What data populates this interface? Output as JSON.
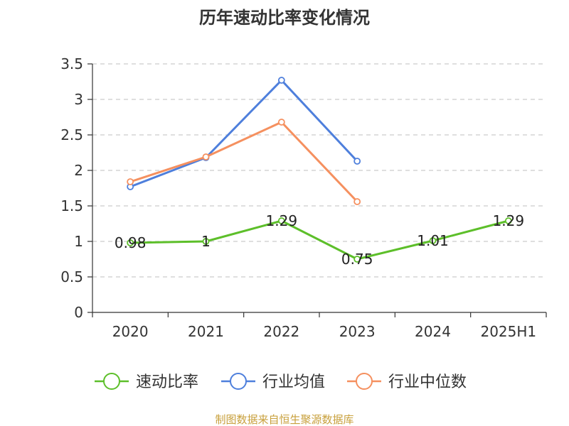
{
  "chart_data": {
    "type": "line",
    "title": "历年速动比率变化情况",
    "categories": [
      "2020",
      "2021",
      "2022",
      "2023",
      "2024",
      "2025H1"
    ],
    "ylim": [
      0,
      3.5
    ],
    "yticks": [
      "0",
      "0.5",
      "1",
      "1.5",
      "2",
      "2.5",
      "3",
      "3.5"
    ],
    "grid": true,
    "legend_position": "bottom",
    "series": [
      {
        "name": "速动比率",
        "color": "#5dbf2a",
        "values": [
          0.98,
          1.0,
          1.29,
          0.75,
          1.01,
          1.29
        ],
        "labels": [
          "0.98",
          "1",
          "1.29",
          "0.75",
          "1.01",
          "1.29"
        ]
      },
      {
        "name": "行业均值",
        "color": "#4e7fdc",
        "values": [
          1.77,
          2.18,
          3.27,
          2.13,
          null,
          null
        ]
      },
      {
        "name": "行业中位数",
        "color": "#f5905f",
        "values": [
          1.84,
          2.19,
          2.68,
          1.56,
          null,
          null
        ]
      }
    ]
  },
  "source_text": "制图数据来自恒生聚源数据库",
  "source_color": "#c8a03c"
}
